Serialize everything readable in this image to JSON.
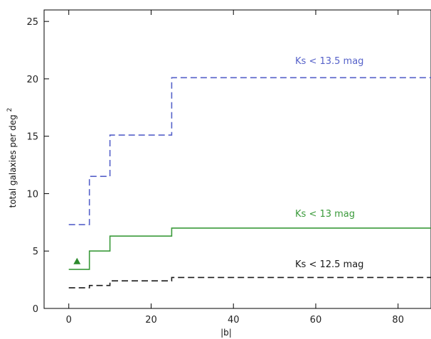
{
  "chart_data": {
    "type": "line",
    "title": "",
    "xlabel": "|b|",
    "ylabel": "total galaxies per deg",
    "ylabel_superscript": "2",
    "xlim": [
      -6,
      88
    ],
    "ylim": [
      0,
      26
    ],
    "xticks": [
      0,
      20,
      40,
      60,
      80
    ],
    "yticks": [
      0,
      5,
      10,
      15,
      20,
      25
    ],
    "xtick_labels": [
      "0",
      "20",
      "40",
      "60",
      "80"
    ],
    "ytick_labels": [
      "0",
      "5",
      "10",
      "15",
      "20",
      "25"
    ],
    "grid": false,
    "series": [
      {
        "label": "Ks < 13.5 mag",
        "color": "#5561c9",
        "style": "dashed",
        "x": [
          0,
          5,
          5,
          10,
          10,
          25,
          25,
          88
        ],
        "y": [
          7.3,
          7.3,
          11.5,
          11.5,
          15.1,
          15.1,
          20.1,
          20.1
        ]
      },
      {
        "label": "Ks < 13 mag",
        "color": "#3a9a3a",
        "style": "solid",
        "x": [
          0,
          5,
          5,
          10,
          10,
          25,
          25,
          88
        ],
        "y": [
          3.4,
          3.4,
          5.0,
          5.0,
          6.3,
          6.3,
          7.0,
          7.0
        ]
      },
      {
        "label": "Ks < 12.5 mag",
        "color": "#1a1a1a",
        "style": "dashed",
        "x": [
          0,
          5,
          5,
          10,
          10,
          25,
          25,
          88
        ],
        "y": [
          1.8,
          1.8,
          2.0,
          2.0,
          2.4,
          2.4,
          2.7,
          2.7
        ]
      }
    ],
    "markers": [
      {
        "shape": "triangle",
        "x": 2,
        "y": 4.1,
        "color": "#2e8b2e"
      }
    ],
    "annotations": [
      {
        "text": "Ks < 13.5 mag",
        "x": 55,
        "y": 21.3,
        "color": "#5561c9"
      },
      {
        "text": "Ks < 13 mag",
        "x": 55,
        "y": 8.0,
        "color": "#3a9a3a"
      },
      {
        "text": "Ks < 12.5 mag",
        "x": 55,
        "y": 3.6,
        "color": "#1a1a1a"
      }
    ]
  }
}
